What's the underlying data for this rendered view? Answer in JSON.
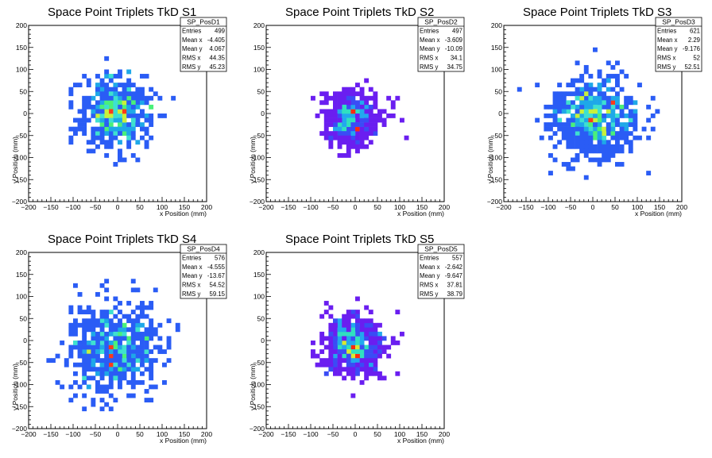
{
  "chart_data": [
    {
      "type": "heatmap",
      "title": "Space Point Triplets TkD S1",
      "xlabel": "x Position (mm)",
      "ylabel": "y Position (mm)",
      "xlim": [
        -200,
        200
      ],
      "ylim": [
        -200,
        200
      ],
      "ticks": [
        "−200",
        "−150",
        "−100",
        "−50",
        "0",
        "50",
        "100",
        "150",
        "200"
      ],
      "stats": {
        "name": "SP_PosD1",
        "rows": [
          [
            "Entries",
            "499"
          ],
          [
            "Mean x",
            "-4.405"
          ],
          [
            "Mean y",
            "4.067"
          ],
          [
            "RMS x",
            "44.35"
          ],
          [
            "RMS y",
            "45.23"
          ]
        ]
      },
      "dist": {
        "entries": 499,
        "mean_x": -4.405,
        "mean_y": 4.067,
        "rms_x": 44.35,
        "rms_y": 45.23
      },
      "palette": [
        "#2a5cf5",
        "#1ea8e8",
        "#3ee0d0",
        "#4af07a",
        "#c8f03c",
        "#ff3a1a"
      ]
    },
    {
      "type": "heatmap",
      "title": "Space Point Triplets TkD S2",
      "xlabel": "x Position (mm)",
      "ylabel": "y Position (mm)",
      "xlim": [
        -200,
        200
      ],
      "ylim": [
        -200,
        200
      ],
      "ticks": [
        "−200",
        "−150",
        "−100",
        "−50",
        "0",
        "50",
        "100",
        "150",
        "200"
      ],
      "stats": {
        "name": "SP_PosD2",
        "rows": [
          [
            "Entries",
            "497"
          ],
          [
            "Mean x",
            "-3.609"
          ],
          [
            "Mean y",
            "-10.09"
          ],
          [
            "RMS x",
            "34.1"
          ],
          [
            "RMS y",
            "34.75"
          ]
        ]
      },
      "dist": {
        "entries": 497,
        "mean_x": -3.609,
        "mean_y": -10.09,
        "rms_x": 34.1,
        "rms_y": 34.75
      },
      "palette": [
        "#6a1ef0",
        "#3a4cf5",
        "#22a8ee",
        "#30e0c0",
        "#d8e830",
        "#ff2a10"
      ]
    },
    {
      "type": "heatmap",
      "title": "Space Point Triplets TkD S3",
      "xlabel": "x Position (mm)",
      "ylabel": "y Position (mm)",
      "xlim": [
        -200,
        200
      ],
      "ylim": [
        -200,
        200
      ],
      "ticks": [
        "−200",
        "−150",
        "−100",
        "−50",
        "0",
        "50",
        "100",
        "150",
        "200"
      ],
      "stats": {
        "name": "SP_PosD3",
        "rows": [
          [
            "Entries",
            "621"
          ],
          [
            "Mean x",
            "2.29"
          ],
          [
            "Mean y",
            "-9.176"
          ],
          [
            "RMS x",
            "52"
          ],
          [
            "RMS y",
            "52.51"
          ]
        ]
      },
      "dist": {
        "entries": 621,
        "mean_x": 2.29,
        "mean_y": -9.176,
        "rms_x": 52,
        "rms_y": 52.51
      },
      "palette": [
        "#2a5cf5",
        "#1ea8e8",
        "#3ee0d0",
        "#4af07a",
        "#c8f03c",
        "#ff3a1a"
      ]
    },
    {
      "type": "heatmap",
      "title": "Space Point Triplets TkD S4",
      "xlabel": "x Position (mm)",
      "ylabel": "y Position (mm)",
      "xlim": [
        -200,
        200
      ],
      "ylim": [
        -200,
        200
      ],
      "ticks": [
        "−200",
        "−150",
        "−100",
        "−50",
        "0",
        "50",
        "100",
        "150",
        "200"
      ],
      "stats": {
        "name": "SP_PosD4",
        "rows": [
          [
            "Entries",
            "576"
          ],
          [
            "Mean x",
            "-4.555"
          ],
          [
            "Mean y",
            "-13.67"
          ],
          [
            "RMS x",
            "54.52"
          ],
          [
            "RMS y",
            "59.15"
          ]
        ]
      },
      "dist": {
        "entries": 576,
        "mean_x": -4.555,
        "mean_y": -13.67,
        "rms_x": 54.52,
        "rms_y": 59.15
      },
      "palette": [
        "#2a5cf5",
        "#1ea8e8",
        "#3ee0d0",
        "#4af07a",
        "#c8f03c",
        "#ff3a1a"
      ]
    },
    {
      "type": "heatmap",
      "title": "Space Point Triplets TkD S5",
      "xlabel": "x Position (mm)",
      "ylabel": "y Position (mm)",
      "xlim": [
        -200,
        200
      ],
      "ylim": [
        -200,
        200
      ],
      "ticks": [
        "−200",
        "−150",
        "−100",
        "−50",
        "0",
        "50",
        "100",
        "150",
        "200"
      ],
      "stats": {
        "name": "SP_PosD5",
        "rows": [
          [
            "Entries",
            "557"
          ],
          [
            "Mean x",
            "-2.642"
          ],
          [
            "Mean y",
            "-9.647"
          ],
          [
            "RMS x",
            "37.81"
          ],
          [
            "RMS y",
            "38.79"
          ]
        ]
      },
      "dist": {
        "entries": 557,
        "mean_x": -2.642,
        "mean_y": -9.647,
        "rms_x": 37.81,
        "rms_y": 38.79
      },
      "palette": [
        "#6a1ef0",
        "#3a4cf5",
        "#22a8ee",
        "#30e0c0",
        "#d8e830",
        "#ff2a10"
      ]
    }
  ]
}
